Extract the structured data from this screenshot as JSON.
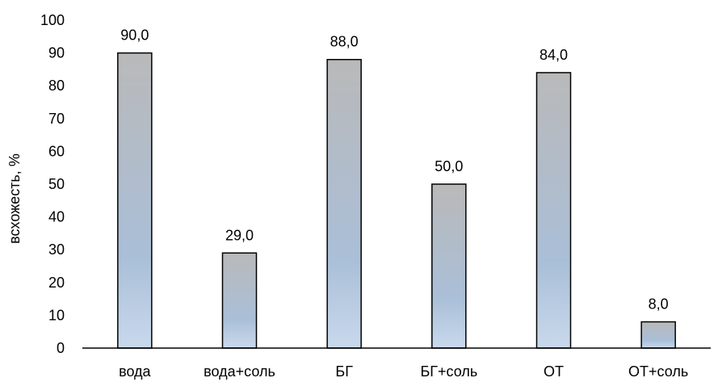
{
  "chart_data": {
    "type": "bar",
    "title": "",
    "xlabel": "",
    "ylabel": "всхожесть, %",
    "categories": [
      "вода",
      "вода+соль",
      "БГ",
      "БГ+соль",
      "ОТ",
      "ОТ+соль"
    ],
    "values": [
      90,
      29,
      88,
      50,
      84,
      8
    ],
    "data_labels": [
      "90,0",
      "29,0",
      "88,0",
      "50,0",
      "84,0",
      "8,0"
    ],
    "ylim": [
      0,
      100
    ],
    "y_ticks": [
      0,
      10,
      20,
      30,
      40,
      50,
      60,
      70,
      80,
      90,
      100
    ],
    "grid": false,
    "legend": "none",
    "colors": {
      "bar_gradient_top": "#b9b9b9",
      "bar_gradient_mid": "#aabfd8",
      "bar_gradient_bottom": "#c9d9ec",
      "bar_border": "#000000",
      "axis": "#000000"
    }
  }
}
